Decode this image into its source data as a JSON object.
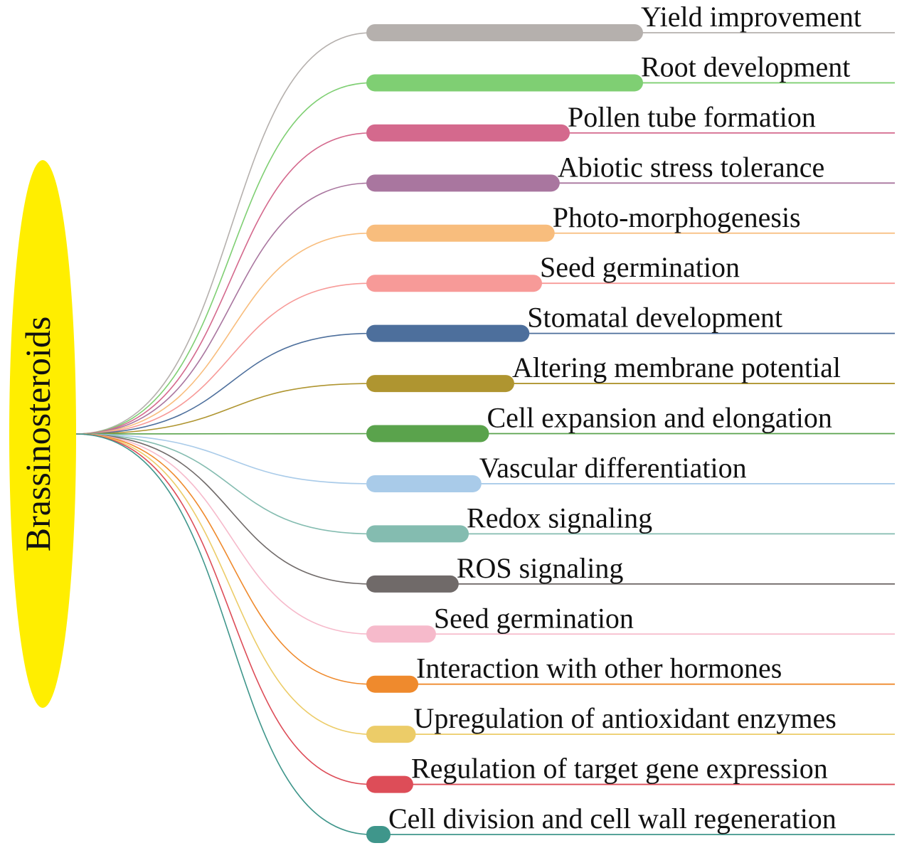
{
  "root": {
    "label": "Brassinosteroids",
    "color": "#ffee00"
  },
  "items": [
    {
      "label": "Yield improvement",
      "color": "#b5b0ad",
      "level": 1.0
    },
    {
      "label": "Root development",
      "color": "#7fcf73",
      "level": 1.0
    },
    {
      "label": "Pollen tube formation",
      "color": "#d4698d",
      "level": 0.71
    },
    {
      "label": "Abiotic stress tolerance",
      "color": "#a9769f",
      "level": 0.67
    },
    {
      "label": "Photo-morphogenesis",
      "color": "#f8bd7d",
      "level": 0.65
    },
    {
      "label": "Seed germination",
      "color": "#f79a98",
      "level": 0.6
    },
    {
      "label": "Stomatal development",
      "color": "#4d6f9c",
      "level": 0.55
    },
    {
      "label": "Altering membrane potential",
      "color": "#af9530",
      "level": 0.49
    },
    {
      "label": "Cell expansion and elongation",
      "color": "#5aa34c",
      "level": 0.39
    },
    {
      "label": "Vascular differentiation",
      "color": "#a9cbe9",
      "level": 0.36
    },
    {
      "label": "Redox signaling",
      "color": "#84bcb0",
      "level": 0.31
    },
    {
      "label": "ROS signaling",
      "color": "#706a69",
      "level": 0.27
    },
    {
      "label": "Seed germination",
      "color": "#f6bacb",
      "level": 0.18
    },
    {
      "label": "Interaction with other hormones",
      "color": "#ef8a2d",
      "level": 0.11
    },
    {
      "label": "Upregulation of antioxidant enzymes",
      "color": "#eccc68",
      "level": 0.1
    },
    {
      "label": "Regulation of target gene expression",
      "color": "#dd4d58",
      "level": 0.09
    },
    {
      "label": "Cell division and cell wall regeneration",
      "color": "#3f968b",
      "level": 0.0
    }
  ]
}
